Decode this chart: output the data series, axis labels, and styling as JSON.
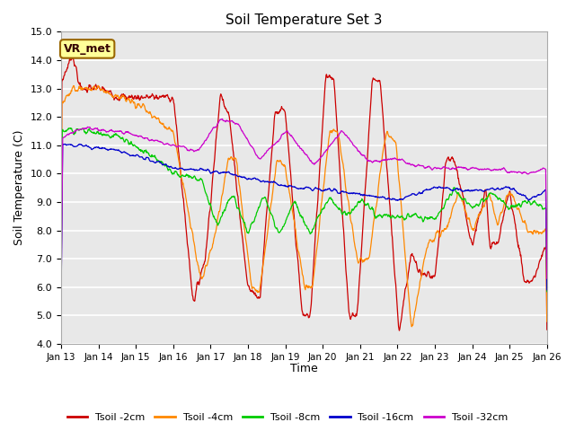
{
  "title": "Soil Temperature Set 3",
  "xlabel": "Time",
  "ylabel": "Soil Temperature (C)",
  "ylim": [
    4.0,
    15.0
  ],
  "yticks": [
    4.0,
    5.0,
    6.0,
    7.0,
    8.0,
    9.0,
    10.0,
    11.0,
    12.0,
    13.0,
    14.0,
    15.0
  ],
  "bg_color": "#e8e8e8",
  "fig_color": "#ffffff",
  "colors": {
    "Tsoil -2cm": "#cc0000",
    "Tsoil -4cm": "#ff8800",
    "Tsoil -8cm": "#00cc00",
    "Tsoil -16cm": "#0000cc",
    "Tsoil -32cm": "#cc00cc"
  },
  "annotation_text": "VR_met",
  "annotation_bg": "#ffff99",
  "annotation_border": "#996600"
}
